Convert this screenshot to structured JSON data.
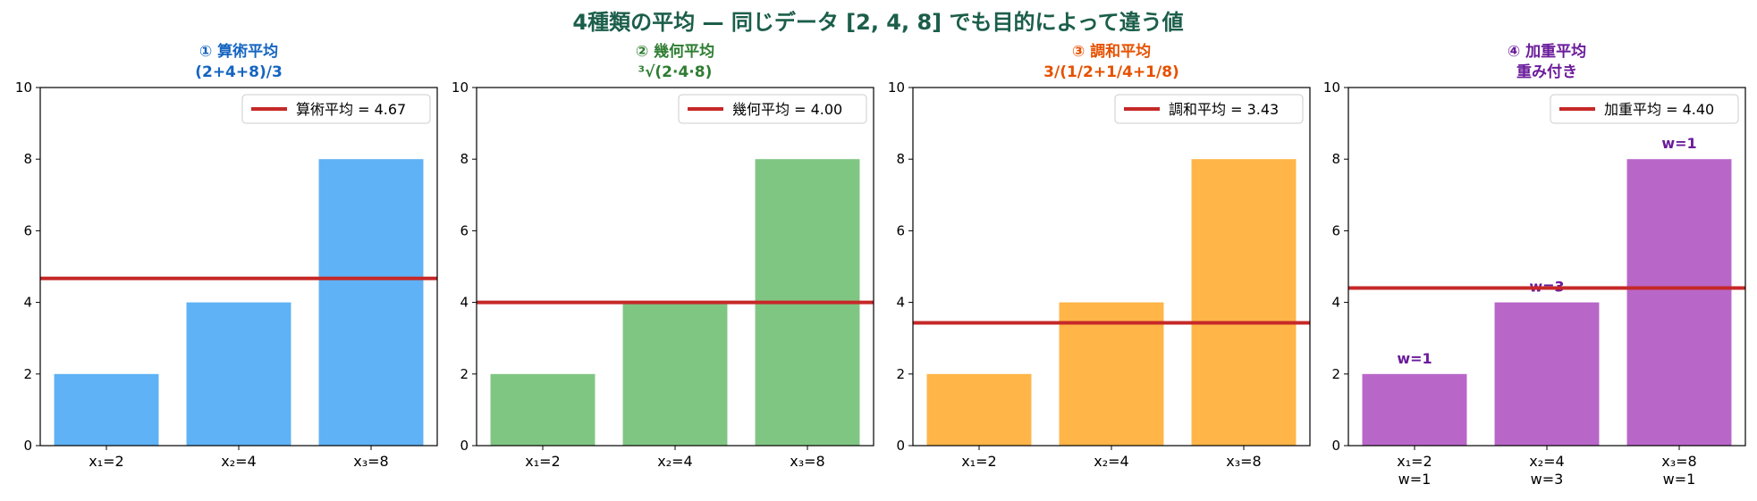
{
  "suptitle": "4種類の平均 — 同じデータ [2, 4, 8] でも目的によって違う値",
  "suptitle_color": "#1b5e4a",
  "chart_data": [
    {
      "type": "bar",
      "title": "① 算術平均",
      "subtitle": "(2+4+8)/3",
      "title_color": "#1565c0",
      "bar_color": "#5fb2f5",
      "categories": [
        "x₁=2",
        "x₂=4",
        "x₃=8"
      ],
      "values": [
        2,
        4,
        8
      ],
      "ylim": [
        0,
        10
      ],
      "yticks": [
        0,
        2,
        4,
        6,
        8,
        10
      ],
      "mean_line": {
        "value": 4.67,
        "label": "算術平均 = 4.67",
        "color": "#c62828"
      },
      "legend_position": "top-right"
    },
    {
      "type": "bar",
      "title": "② 幾何平均",
      "subtitle": "³√(2·4·8)",
      "title_color": "#2e7d32",
      "bar_color": "#80c683",
      "categories": [
        "x₁=2",
        "x₂=4",
        "x₃=8"
      ],
      "values": [
        2,
        4,
        8
      ],
      "ylim": [
        0,
        10
      ],
      "yticks": [
        0,
        2,
        4,
        6,
        8,
        10
      ],
      "mean_line": {
        "value": 4.0,
        "label": "幾何平均 = 4.00",
        "color": "#c62828"
      },
      "legend_position": "top-right"
    },
    {
      "type": "bar",
      "title": "③ 調和平均",
      "subtitle": "3/(1/2+1/4+1/8)",
      "title_color": "#e65100",
      "bar_color": "#ffb547",
      "categories": [
        "x₁=2",
        "x₂=4",
        "x₃=8"
      ],
      "values": [
        2,
        4,
        8
      ],
      "ylim": [
        0,
        10
      ],
      "yticks": [
        0,
        2,
        4,
        6,
        8,
        10
      ],
      "mean_line": {
        "value": 3.43,
        "label": "調和平均 = 3.43",
        "color": "#c62828"
      },
      "legend_position": "top-right"
    },
    {
      "type": "bar",
      "title": "④ 加重平均",
      "subtitle": "重み付き",
      "title_color": "#6a1b9a",
      "bar_color": "#b966c9",
      "categories": [
        "x₁=2",
        "x₂=4",
        "x₃=8"
      ],
      "category_sublabels": [
        "w=1",
        "w=3",
        "w=1"
      ],
      "values": [
        2,
        4,
        8
      ],
      "bar_labels": [
        "w=1",
        "w=3",
        "w=1"
      ],
      "ylim": [
        0,
        10
      ],
      "yticks": [
        0,
        2,
        4,
        6,
        8,
        10
      ],
      "mean_line": {
        "value": 4.4,
        "label": "加重平均 = 4.40",
        "color": "#c62828"
      },
      "legend_position": "top-right"
    }
  ]
}
